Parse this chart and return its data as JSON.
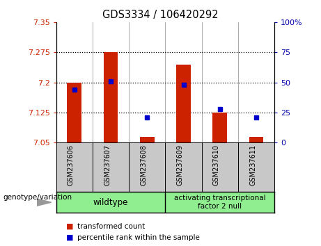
{
  "title": "GDS3334 / 106420292",
  "samples": [
    "GSM237606",
    "GSM237607",
    "GSM237608",
    "GSM237609",
    "GSM237610",
    "GSM237611"
  ],
  "red_values": [
    7.2,
    7.275,
    7.065,
    7.245,
    7.125,
    7.065
  ],
  "blue_values_pct": [
    44,
    51,
    21,
    48,
    28,
    21
  ],
  "ylim_left": [
    7.05,
    7.35
  ],
  "ylim_right": [
    0,
    100
  ],
  "left_ticks": [
    7.05,
    7.125,
    7.2,
    7.275,
    7.35
  ],
  "right_ticks": [
    0,
    25,
    50,
    75,
    100
  ],
  "left_tick_labels": [
    "7.05",
    "7.125",
    "7.2",
    "7.275",
    "7.35"
  ],
  "right_tick_labels": [
    "0",
    "25",
    "50",
    "75",
    "100%"
  ],
  "bar_base": 7.05,
  "bar_width": 0.4,
  "group1_label": "wildtype",
  "group2_label": "activating transcriptional\nfactor 2 null",
  "green_color": "#90EE90",
  "bar_color": "#CC2200",
  "blue_color": "#0000CC",
  "ylabel_left_color": "#CC2200",
  "ylabel_right_color": "#0000AA",
  "legend_items": [
    "transformed count",
    "percentile rank within the sample"
  ],
  "genotype_label": "genotype/variation",
  "xtick_bg": "#C8C8C8"
}
